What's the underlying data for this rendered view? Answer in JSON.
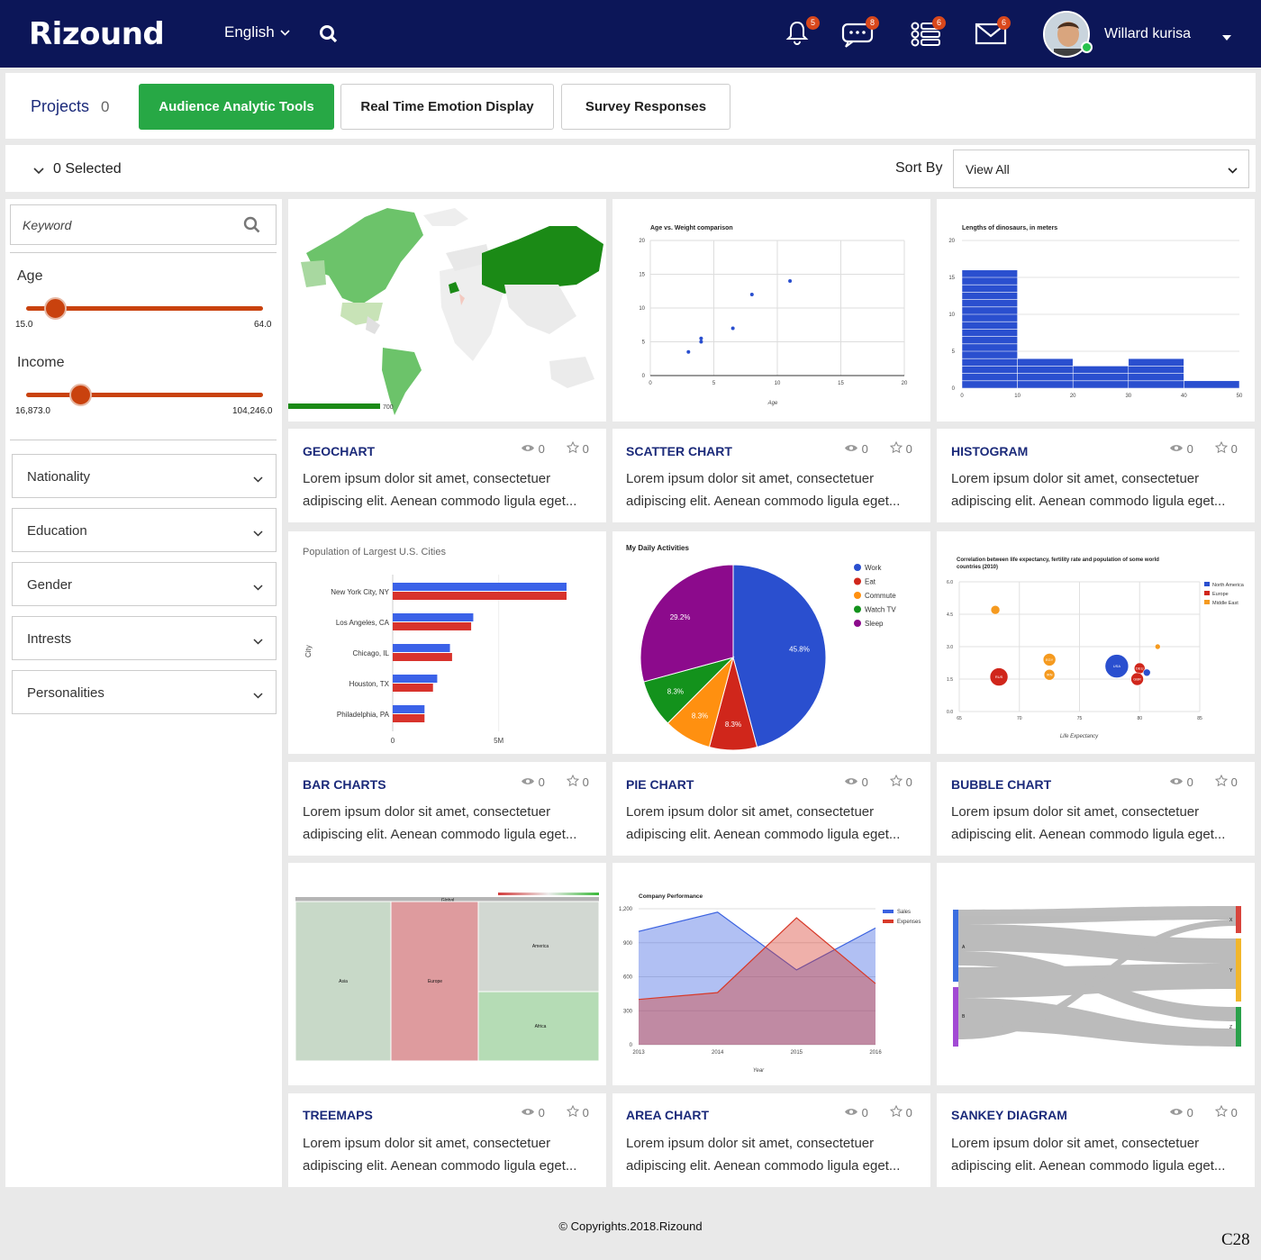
{
  "header": {
    "logo": "Rizound",
    "language": "English",
    "notifications_badge": "5",
    "messages_badge": "8",
    "tasks_badge": "6",
    "mail_badge": "6",
    "user_name": "Willard kurisa"
  },
  "projects": {
    "label": "Projects",
    "count": "0",
    "tabs": [
      "Audience Analytic Tools",
      "Real Time Emotion Display",
      "Survey Responses"
    ]
  },
  "toolbar": {
    "selected": "0 Selected",
    "sort_label": "Sort By",
    "sort_value": "View All"
  },
  "filters": {
    "keyword_placeholder": "Keyword",
    "age": {
      "label": "Age",
      "min": "15.0",
      "max": "64.0",
      "level": 0.12
    },
    "income": {
      "label": "Income",
      "min": "16,873.0",
      "max": "104,246.0",
      "level": 0.23
    },
    "dropdowns": [
      "Nationality",
      "Education",
      "Gender",
      "Intrests",
      "Personalities"
    ]
  },
  "cards": [
    {
      "title": "GEOCHART",
      "views": "0",
      "stars": "0",
      "desc1": "Lorem ipsum dolor sit amet, consectetuer",
      "desc2": "adipiscing elit. Aenean commodo ligula eget..."
    },
    {
      "title": "SCATTER CHART",
      "views": "0",
      "stars": "0",
      "desc1": "Lorem ipsum dolor sit amet, consectetuer",
      "desc2": "adipiscing elit. Aenean commodo ligula eget..."
    },
    {
      "title": "HISTOGRAM",
      "views": "0",
      "stars": "0",
      "desc1": "Lorem ipsum dolor sit amet, consectetuer",
      "desc2": "adipiscing elit. Aenean commodo ligula eget..."
    },
    {
      "title": "BAR CHARTS",
      "views": "0",
      "stars": "0",
      "desc1": "Lorem ipsum dolor sit amet, consectetuer",
      "desc2": "adipiscing elit. Aenean commodo ligula eget..."
    },
    {
      "title": "PIE CHART",
      "views": "0",
      "stars": "0",
      "desc1": "Lorem ipsum dolor sit amet, consectetuer",
      "desc2": "adipiscing elit. Aenean commodo ligula eget..."
    },
    {
      "title": "BUBBLE CHART",
      "views": "0",
      "stars": "0",
      "desc1": "Lorem ipsum dolor sit amet, consectetuer",
      "desc2": "adipiscing elit. Aenean commodo ligula eget..."
    },
    {
      "title": "TREEMAPS",
      "views": "0",
      "stars": "0",
      "desc1": "Lorem ipsum dolor sit amet, consectetuer",
      "desc2": "adipiscing elit. Aenean commodo ligula eget..."
    },
    {
      "title": "AREA CHART",
      "views": "0",
      "stars": "0",
      "desc1": "Lorem ipsum dolor sit amet, consectetuer",
      "desc2": "adipiscing elit. Aenean commodo ligula eget..."
    },
    {
      "title": "SANKEY DIAGRAM",
      "views": "0",
      "stars": "0",
      "desc1": "Lorem ipsum dolor sit amet, consectetuer",
      "desc2": "adipiscing elit. Aenean commodo ligula eget..."
    }
  ],
  "chart_data": [
    {
      "type": "heatmap",
      "legend_max": "700"
    },
    {
      "type": "scatter",
      "title": "Age vs. Weight comparison",
      "xlabel": "Age",
      "ylabel": "",
      "xlim": [
        0,
        20
      ],
      "ylim": [
        0,
        20
      ],
      "xticks": [
        "0",
        "5",
        "10",
        "15",
        "20"
      ],
      "yticks": [
        "0",
        "5",
        "10",
        "15",
        "20"
      ],
      "points": [
        [
          3,
          3.5
        ],
        [
          4,
          5
        ],
        [
          4,
          5.5
        ],
        [
          6.5,
          7
        ],
        [
          8,
          12
        ],
        [
          11,
          14
        ]
      ]
    },
    {
      "type": "bar",
      "title": "Lengths of dinosaurs, in meters",
      "xlim": [
        0,
        50
      ],
      "ylim": [
        0,
        20
      ],
      "xticks": [
        "0",
        "10",
        "20",
        "30",
        "40",
        "50"
      ],
      "yticks": [
        "0",
        "5",
        "10",
        "15",
        "20"
      ],
      "bins": [
        {
          "from": 0,
          "to": 10,
          "count": 16
        },
        {
          "from": 10,
          "to": 20,
          "count": 4
        },
        {
          "from": 20,
          "to": 30,
          "count": 3
        },
        {
          "from": 30,
          "to": 40,
          "count": 4
        },
        {
          "from": 40,
          "to": 50,
          "count": 1
        }
      ]
    },
    {
      "type": "bar",
      "title": "Population of Largest U.S. Cities",
      "ylabel": "City",
      "xticks": [
        "0",
        "5M"
      ],
      "categories": [
        "New York City, NY",
        "Los Angeles, CA",
        "Chicago, IL",
        "Houston, TX",
        "Philadelphia, PA"
      ],
      "series": [
        {
          "values": [
            8.2,
            3.8,
            2.7,
            2.1,
            1.5
          ]
        },
        {
          "values": [
            8.2,
            3.7,
            2.8,
            1.9,
            1.5
          ]
        }
      ],
      "xmax": 8.2
    },
    {
      "type": "pie",
      "title": "My Daily Activities",
      "labels": [
        "Work",
        "Eat",
        "Commute",
        "Watch TV",
        "Sleep"
      ],
      "values": [
        45.8,
        8.3,
        8.3,
        8.3,
        29.2
      ],
      "colors": [
        "#2a4fcf",
        "#d0261b",
        "#ff9010",
        "#13921c",
        "#8c0a8c"
      ]
    },
    {
      "type": "scatter",
      "title": "Correlation between life expectancy, fertility rate and population of some world countries (2010)",
      "xlabel": "Life Expectancy",
      "legend": [
        "North America",
        "Europe",
        "Middle East"
      ],
      "xticks": [
        "65",
        "70",
        "75",
        "80",
        "85"
      ],
      "yticks": [
        "0.0",
        "1.5",
        "3.0",
        "4.5",
        "6.0"
      ],
      "xlim": [
        65,
        85
      ],
      "ylim": [
        0,
        6
      ],
      "bubbles": [
        {
          "x": 68,
          "y": 4.7,
          "r": 5,
          "c": "#f59a1f",
          "label": ""
        },
        {
          "x": 68.3,
          "y": 1.6,
          "r": 10,
          "c": "#d0261b",
          "label": "RUS"
        },
        {
          "x": 72.5,
          "y": 2.4,
          "r": 7,
          "c": "#f59a1f",
          "label": "EGY"
        },
        {
          "x": 72.5,
          "y": 1.7,
          "r": 6,
          "c": "#f59a1f",
          "label": "IRN"
        },
        {
          "x": 78.1,
          "y": 2.1,
          "r": 13,
          "c": "#2a4fcf",
          "label": "USA"
        },
        {
          "x": 80.0,
          "y": 2.0,
          "r": 6,
          "c": "#d0261b",
          "label": "DEU"
        },
        {
          "x": 79.8,
          "y": 1.5,
          "r": 7,
          "c": "#d0261b",
          "label": "GBR"
        },
        {
          "x": 80.6,
          "y": 1.8,
          "r": 4,
          "c": "#2a4fcf",
          "label": ""
        },
        {
          "x": 81.5,
          "y": 3.0,
          "r": 3,
          "c": "#f59a1f",
          "label": ""
        }
      ]
    },
    {
      "type": "heatmap",
      "labels": [
        "Global",
        "Asia",
        "Europe",
        "America",
        "Africa"
      ]
    },
    {
      "type": "area",
      "title": "Company Performance",
      "xlabel": "Year",
      "categories": [
        "2013",
        "2014",
        "2015",
        "2016"
      ],
      "yticks": [
        "0",
        "300",
        "600",
        "900",
        "1,200"
      ],
      "ylim": [
        0,
        1200
      ],
      "series": [
        {
          "name": "Sales",
          "values": [
            1000,
            1170,
            660,
            1030
          ],
          "color": "#3b62e0"
        },
        {
          "name": "Expenses",
          "values": [
            400,
            460,
            1120,
            540
          ],
          "color": "#d83a2a"
        }
      ]
    },
    {
      "type": "table",
      "nodes_left": [
        "A",
        "B"
      ],
      "nodes_right": [
        "X",
        "Y",
        "Z"
      ]
    }
  ],
  "footer": "© Copyrights.2018.Rizound",
  "code": "C28"
}
